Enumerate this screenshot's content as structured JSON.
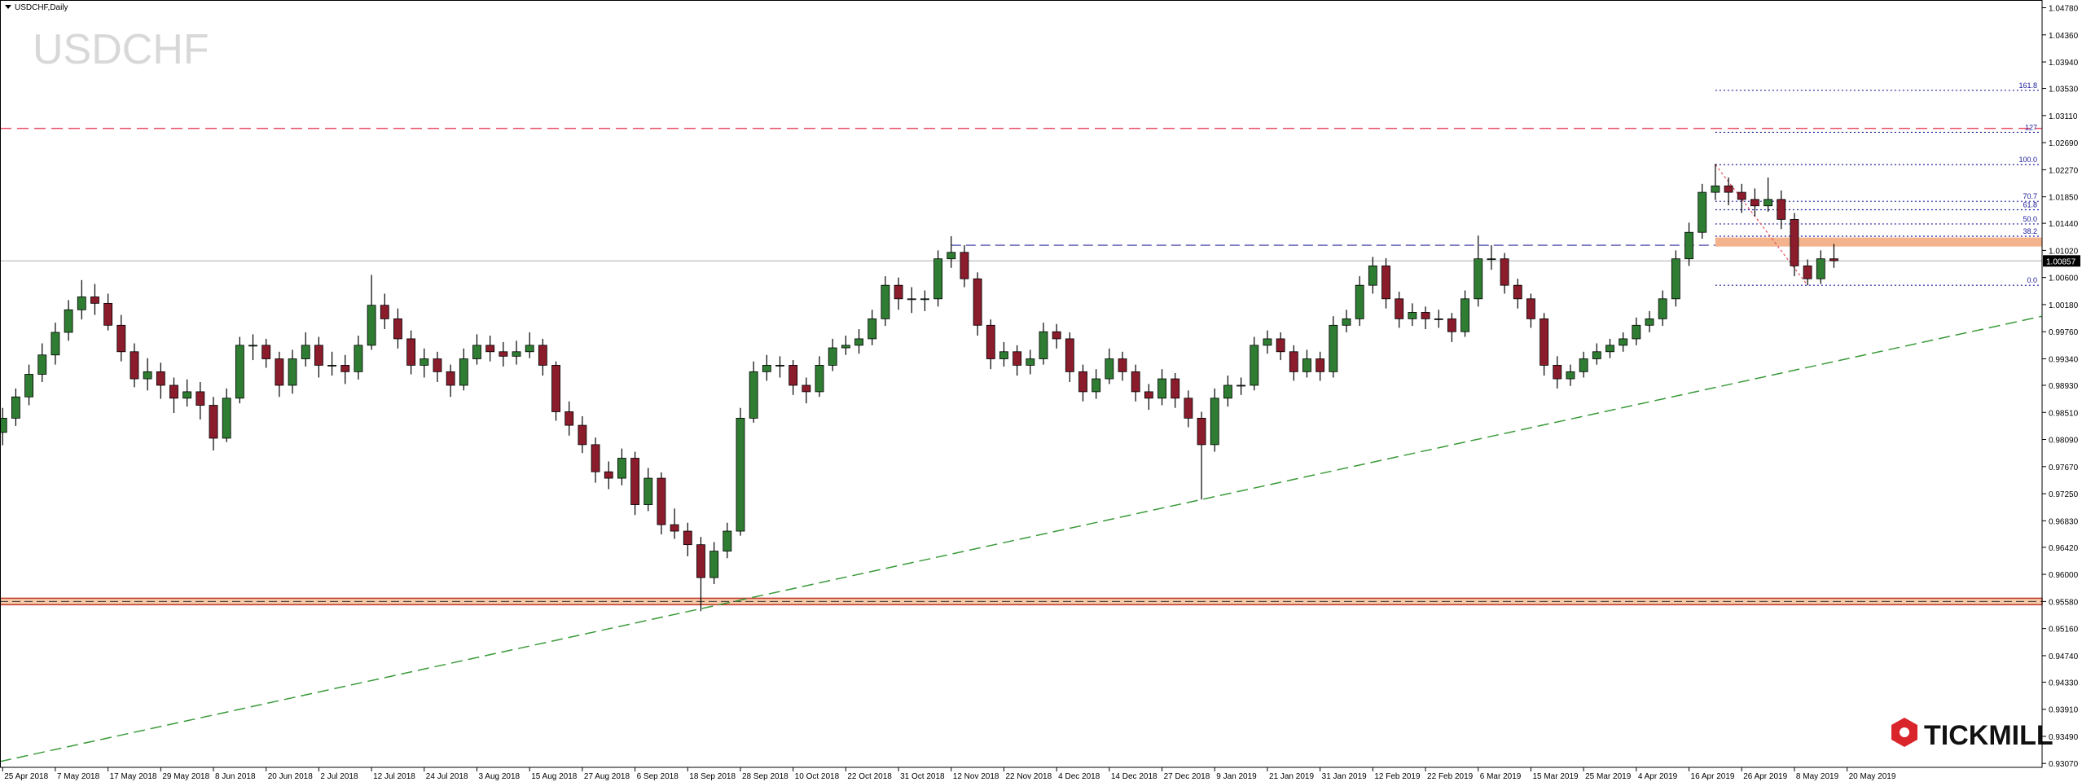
{
  "chart_data": {
    "type": "candlestick",
    "title": "USDCHF,Daily",
    "watermark": "USDCHF",
    "colors": {
      "up": "#2e7d32",
      "down": "#8b1c2c",
      "wick": "#000000"
    },
    "xlim": [
      -0.2,
      154.8
    ],
    "ylim": [
      0.9301,
      1.049
    ],
    "xticks": [
      {
        "value": 0,
        "label": "25 Apr 2018"
      },
      {
        "value": 4,
        "label": "7 May 2018"
      },
      {
        "value": 8,
        "label": "17 May 2018"
      },
      {
        "value": 12,
        "label": "29 May 2018"
      },
      {
        "value": 16,
        "label": "8 Jun 2018"
      },
      {
        "value": 20,
        "label": "20 Jun 2018"
      },
      {
        "value": 24,
        "label": "2 Jul 2018"
      },
      {
        "value": 28,
        "label": "12 Jul 2018"
      },
      {
        "value": 32,
        "label": "24 Jul 2018"
      },
      {
        "value": 36,
        "label": "3 Aug 2018"
      },
      {
        "value": 40,
        "label": "15 Aug 2018"
      },
      {
        "value": 44,
        "label": "27 Aug 2018"
      },
      {
        "value": 48,
        "label": "6 Sep 2018"
      },
      {
        "value": 52,
        "label": "18 Sep 2018"
      },
      {
        "value": 56,
        "label": "28 Sep 2018"
      },
      {
        "value": 60,
        "label": "10 Oct 2018"
      },
      {
        "value": 64,
        "label": "22 Oct 2018"
      },
      {
        "value": 68,
        "label": "31 Oct 2018"
      },
      {
        "value": 72,
        "label": "12 Nov 2018"
      },
      {
        "value": 76,
        "label": "22 Nov 2018"
      },
      {
        "value": 80,
        "label": "4 Dec 2018"
      },
      {
        "value": 84,
        "label": "14 Dec 2018"
      },
      {
        "value": 88,
        "label": "27 Dec 2018"
      },
      {
        "value": 92,
        "label": "9 Jan 2019"
      },
      {
        "value": 96,
        "label": "21 Jan 2019"
      },
      {
        "value": 100,
        "label": "31 Jan 2019"
      },
      {
        "value": 104,
        "label": "12 Feb 2019"
      },
      {
        "value": 108,
        "label": "22 Feb 2019"
      },
      {
        "value": 112,
        "label": "6 Mar 2019"
      },
      {
        "value": 116,
        "label": "15 Mar 2019"
      },
      {
        "value": 120,
        "label": "25 Mar 2019"
      },
      {
        "value": 124,
        "label": "4 Apr 2019"
      },
      {
        "value": 128,
        "label": "16 Apr 2019"
      },
      {
        "value": 132,
        "label": "26 Apr 2019"
      },
      {
        "value": 136,
        "label": "8 May 2019"
      },
      {
        "value": 140,
        "label": "20 May 2019"
      }
    ],
    "yticks": [
      {
        "value": 1.0478,
        "label": "1.04780"
      },
      {
        "value": 1.0436,
        "label": "1.04360"
      },
      {
        "value": 1.0394,
        "label": "1.03940"
      },
      {
        "value": 1.0353,
        "label": "1.03530"
      },
      {
        "value": 1.0311,
        "label": "1.03110"
      },
      {
        "value": 1.0269,
        "label": "1.02690"
      },
      {
        "value": 1.0227,
        "label": "1.02270"
      },
      {
        "value": 1.0185,
        "label": "1.01850"
      },
      {
        "value": 1.0144,
        "label": "1.01440"
      },
      {
        "value": 1.0102,
        "label": "1.01020"
      },
      {
        "value": 1.006,
        "label": "1.00600"
      },
      {
        "value": 1.0018,
        "label": "1.00180"
      },
      {
        "value": 0.9976,
        "label": "0.99760"
      },
      {
        "value": 0.9934,
        "label": "0.99340"
      },
      {
        "value": 0.9893,
        "label": "0.98930"
      },
      {
        "value": 0.9851,
        "label": "0.98510"
      },
      {
        "value": 0.9809,
        "label": "0.98090"
      },
      {
        "value": 0.9767,
        "label": "0.97670"
      },
      {
        "value": 0.9725,
        "label": "0.97250"
      },
      {
        "value": 0.9683,
        "label": "0.96830"
      },
      {
        "value": 0.9642,
        "label": "0.96420"
      },
      {
        "value": 0.96,
        "label": "0.96000"
      },
      {
        "value": 0.9558,
        "label": "0.95580"
      },
      {
        "value": 0.9516,
        "label": "0.95160"
      },
      {
        "value": 0.9474,
        "label": "0.94740"
      },
      {
        "value": 0.9433,
        "label": "0.94330"
      },
      {
        "value": 0.9391,
        "label": "0.93910"
      },
      {
        "value": 0.9349,
        "label": "0.93490"
      },
      {
        "value": 0.9307,
        "label": "0.93070"
      }
    ],
    "ohlc": [
      [
        0.982,
        0.9858,
        0.98,
        0.9842
      ],
      [
        0.9842,
        0.9888,
        0.983,
        0.9875
      ],
      [
        0.9875,
        0.9925,
        0.9862,
        0.991
      ],
      [
        0.991,
        0.9958,
        0.9898,
        0.994
      ],
      [
        0.994,
        0.999,
        0.9925,
        0.9975
      ],
      [
        0.9975,
        1.0025,
        0.9962,
        1.001
      ],
      [
        1.001,
        1.0056,
        0.9995,
        1.003
      ],
      [
        1.003,
        1.005,
        1.0002,
        1.002
      ],
      [
        1.002,
        1.0035,
        0.9978,
        0.9986
      ],
      [
        0.9986,
        1.0002,
        0.993,
        0.9945
      ],
      [
        0.9945,
        0.9958,
        0.989,
        0.9903
      ],
      [
        0.9903,
        0.9935,
        0.9885,
        0.9914
      ],
      [
        0.9914,
        0.9928,
        0.9872,
        0.9893
      ],
      [
        0.9893,
        0.9905,
        0.985,
        0.9873
      ],
      [
        0.9873,
        0.9902,
        0.986,
        0.9883
      ],
      [
        0.9883,
        0.9898,
        0.984,
        0.9862
      ],
      [
        0.9862,
        0.9875,
        0.9792,
        0.9811
      ],
      [
        0.9811,
        0.9888,
        0.9805,
        0.9873
      ],
      [
        0.9873,
        0.9968,
        0.9865,
        0.9955
      ],
      [
        0.9955,
        0.9972,
        0.9932,
        0.9955
      ],
      [
        0.9955,
        0.9965,
        0.992,
        0.9934
      ],
      [
        0.9934,
        0.9945,
        0.9875,
        0.9893
      ],
      [
        0.9893,
        0.9948,
        0.988,
        0.9934
      ],
      [
        0.9934,
        0.9975,
        0.9922,
        0.9955
      ],
      [
        0.9955,
        0.9968,
        0.9905,
        0.9924
      ],
      [
        0.9924,
        0.9945,
        0.9908,
        0.9924
      ],
      [
        0.9924,
        0.994,
        0.9895,
        0.9914
      ],
      [
        0.9914,
        0.997,
        0.9902,
        0.9955
      ],
      [
        0.9955,
        1.0064,
        0.9948,
        1.0017
      ],
      [
        1.0017,
        1.0035,
        0.998,
        0.9996
      ],
      [
        0.9996,
        1.0012,
        0.995,
        0.9965
      ],
      [
        0.9965,
        0.9978,
        0.991,
        0.9924
      ],
      [
        0.9924,
        0.995,
        0.9905,
        0.9934
      ],
      [
        0.9934,
        0.9945,
        0.9898,
        0.9914
      ],
      [
        0.9914,
        0.9925,
        0.9875,
        0.9893
      ],
      [
        0.9893,
        0.995,
        0.9885,
        0.9934
      ],
      [
        0.9934,
        0.9972,
        0.9925,
        0.9955
      ],
      [
        0.9955,
        0.997,
        0.993,
        0.9945
      ],
      [
        0.9945,
        0.996,
        0.9922,
        0.9938
      ],
      [
        0.9938,
        0.9962,
        0.9925,
        0.9945
      ],
      [
        0.9945,
        0.9975,
        0.9935,
        0.9955
      ],
      [
        0.9955,
        0.9965,
        0.9908,
        0.9924
      ],
      [
        0.9924,
        0.993,
        0.9838,
        0.9852
      ],
      [
        0.9852,
        0.9868,
        0.9815,
        0.9831
      ],
      [
        0.9831,
        0.9845,
        0.9788,
        0.9801
      ],
      [
        0.9801,
        0.9812,
        0.9742,
        0.9759
      ],
      [
        0.9759,
        0.9775,
        0.9732,
        0.9749
      ],
      [
        0.9749,
        0.9795,
        0.9738,
        0.978
      ],
      [
        0.978,
        0.979,
        0.9692,
        0.9708
      ],
      [
        0.9708,
        0.9765,
        0.9698,
        0.9749
      ],
      [
        0.9749,
        0.9758,
        0.9662,
        0.9677
      ],
      [
        0.9677,
        0.9702,
        0.9655,
        0.9667
      ],
      [
        0.9667,
        0.968,
        0.9628,
        0.9646
      ],
      [
        0.9646,
        0.9658,
        0.9543,
        0.9595
      ],
      [
        0.9595,
        0.965,
        0.9585,
        0.9636
      ],
      [
        0.9636,
        0.968,
        0.9625,
        0.9667
      ],
      [
        0.9667,
        0.9858,
        0.966,
        0.9842
      ],
      [
        0.9842,
        0.993,
        0.9835,
        0.9914
      ],
      [
        0.9914,
        0.994,
        0.99,
        0.9924
      ],
      [
        0.9924,
        0.9938,
        0.9905,
        0.9924
      ],
      [
        0.9924,
        0.9932,
        0.9878,
        0.9893
      ],
      [
        0.9893,
        0.9905,
        0.9865,
        0.9883
      ],
      [
        0.9883,
        0.9938,
        0.9875,
        0.9924
      ],
      [
        0.9924,
        0.9965,
        0.9915,
        0.9951
      ],
      [
        0.9951,
        0.997,
        0.994,
        0.9955
      ],
      [
        0.9955,
        0.998,
        0.9942,
        0.9965
      ],
      [
        0.9965,
        1.001,
        0.9955,
        0.9996
      ],
      [
        0.9996,
        1.0062,
        0.9985,
        1.0048
      ],
      [
        1.0048,
        1.006,
        1.001,
        1.0027
      ],
      [
        1.0027,
        1.0045,
        1.0005,
        1.0027
      ],
      [
        1.0027,
        1.004,
        1.0008,
        1.0027
      ],
      [
        1.0027,
        1.0102,
        1.0015,
        1.0089
      ],
      [
        1.0089,
        1.0124,
        1.0075,
        1.0099
      ],
      [
        1.0099,
        1.011,
        1.0045,
        1.0058
      ],
      [
        1.0058,
        1.0068,
        0.997,
        0.9986
      ],
      [
        0.9986,
        0.9995,
        0.9918,
        0.9934
      ],
      [
        0.9934,
        0.996,
        0.9922,
        0.9945
      ],
      [
        0.9945,
        0.9955,
        0.9908,
        0.9924
      ],
      [
        0.9924,
        0.9948,
        0.991,
        0.9934
      ],
      [
        0.9934,
        0.999,
        0.9925,
        0.9976
      ],
      [
        0.9976,
        0.9988,
        0.995,
        0.9965
      ],
      [
        0.9965,
        0.9975,
        0.9898,
        0.9914
      ],
      [
        0.9914,
        0.9925,
        0.9868,
        0.9883
      ],
      [
        0.9883,
        0.9918,
        0.9872,
        0.9903
      ],
      [
        0.9903,
        0.995,
        0.9895,
        0.9934
      ],
      [
        0.9934,
        0.9945,
        0.99,
        0.9914
      ],
      [
        0.9914,
        0.9925,
        0.9868,
        0.9883
      ],
      [
        0.9883,
        0.9895,
        0.9855,
        0.9873
      ],
      [
        0.9873,
        0.9918,
        0.9862,
        0.9903
      ],
      [
        0.9903,
        0.9912,
        0.9858,
        0.9873
      ],
      [
        0.9873,
        0.9885,
        0.9828,
        0.9842
      ],
      [
        0.9842,
        0.9852,
        0.9716,
        0.9801
      ],
      [
        0.9801,
        0.9888,
        0.979,
        0.9873
      ],
      [
        0.9873,
        0.9908,
        0.986,
        0.9893
      ],
      [
        0.9893,
        0.9905,
        0.9878,
        0.9893
      ],
      [
        0.9893,
        0.9968,
        0.9885,
        0.9955
      ],
      [
        0.9955,
        0.9978,
        0.9942,
        0.9965
      ],
      [
        0.9965,
        0.9975,
        0.9932,
        0.9945
      ],
      [
        0.9945,
        0.9955,
        0.99,
        0.9914
      ],
      [
        0.9914,
        0.9948,
        0.9905,
        0.9934
      ],
      [
        0.9934,
        0.9945,
        0.99,
        0.9914
      ],
      [
        0.9914,
        1.0,
        0.9905,
        0.9986
      ],
      [
        0.9986,
        1.001,
        0.9975,
        0.9996
      ],
      [
        0.9996,
        1.0062,
        0.9985,
        1.0048
      ],
      [
        1.0048,
        1.0092,
        1.0035,
        1.0078
      ],
      [
        1.0078,
        1.009,
        1.0012,
        1.0027
      ],
      [
        1.0027,
        1.0038,
        0.9982,
        0.9996
      ],
      [
        0.9996,
        1.002,
        0.9985,
        1.0006
      ],
      [
        1.0006,
        1.0015,
        0.998,
        0.9996
      ],
      [
        0.9996,
        1.001,
        0.9982,
        0.9996
      ],
      [
        0.9996,
        1.0005,
        0.996,
        0.9976
      ],
      [
        0.9976,
        1.004,
        0.9968,
        1.0027
      ],
      [
        1.0027,
        1.0125,
        1.0015,
        1.0089
      ],
      [
        1.0089,
        1.011,
        1.0072,
        1.0089
      ],
      [
        1.0089,
        1.0098,
        1.0035,
        1.0048
      ],
      [
        1.0048,
        1.0058,
        1.0012,
        1.0027
      ],
      [
        1.0027,
        1.0035,
        0.9982,
        0.9996
      ],
      [
        0.9996,
        1.0005,
        0.9908,
        0.9924
      ],
      [
        0.9924,
        0.9938,
        0.9888,
        0.9903
      ],
      [
        0.9903,
        0.9925,
        0.9892,
        0.9914
      ],
      [
        0.9914,
        0.9945,
        0.9905,
        0.9934
      ],
      [
        0.9934,
        0.9958,
        0.9925,
        0.9945
      ],
      [
        0.9945,
        0.9965,
        0.9935,
        0.9955
      ],
      [
        0.9955,
        0.9975,
        0.9945,
        0.9965
      ],
      [
        0.9965,
        0.9998,
        0.9955,
        0.9986
      ],
      [
        0.9986,
        1.0008,
        0.9975,
        0.9996
      ],
      [
        0.9996,
        1.004,
        0.9985,
        1.0027
      ],
      [
        1.0027,
        1.0102,
        1.0015,
        1.0089
      ],
      [
        1.0089,
        1.0145,
        1.0078,
        1.013
      ],
      [
        1.013,
        1.0205,
        1.012,
        1.0192
      ],
      [
        1.0192,
        1.0236,
        1.018,
        1.0202
      ],
      [
        1.0202,
        1.0215,
        1.0172,
        1.0192
      ],
      [
        1.0192,
        1.0205,
        1.016,
        1.0181
      ],
      [
        1.0181,
        1.0198,
        1.0155,
        1.0171
      ],
      [
        1.0171,
        1.0215,
        1.0162,
        1.0181
      ],
      [
        1.0181,
        1.0195,
        1.0135,
        1.015
      ],
      [
        1.015,
        1.016,
        1.0062,
        1.0078
      ],
      [
        1.0078,
        1.0088,
        1.0048,
        1.0058
      ],
      [
        1.0058,
        1.0102,
        1.005,
        1.0089
      ],
      [
        1.0089,
        1.0112,
        1.0075,
        1.0086
      ]
    ],
    "current_price": 1.00857,
    "upper_level": {
      "price": 1.0291,
      "color": "#e8506a"
    },
    "support_zone": {
      "low": 0.9553,
      "high": 0.9563,
      "color": "#c0392b",
      "fill": "#f6c9a8"
    },
    "resistance": {
      "price": 1.011,
      "from": 72,
      "to": 130,
      "color": "#2a2a9a"
    },
    "resistance_zone": {
      "low": 1.0108,
      "high": 1.0122,
      "from": 130,
      "color": "#f0a070"
    },
    "trendline": {
      "start": [
        -0.2,
        0.931
      ],
      "end": [
        154.8,
        1.0
      ],
      "color": "#3a9a3a"
    },
    "fib": {
      "start": 130,
      "end": 137,
      "color": "#1a1a9a",
      "anchor_color": "#e05060",
      "levels": [
        {
          "label": "161.8",
          "price": 1.035
        },
        {
          "label": "127",
          "price": 1.0285
        },
        {
          "label": "100.0",
          "price": 1.0235
        },
        {
          "label": "70.7",
          "price": 1.0178
        },
        {
          "label": "61.8",
          "price": 1.0165
        },
        {
          "label": "50.0",
          "price": 1.0143
        },
        {
          "label": "38.2",
          "price": 1.0124
        },
        {
          "label": "0.0",
          "price": 1.0048
        }
      ]
    }
  },
  "logo": "TICKMILL"
}
